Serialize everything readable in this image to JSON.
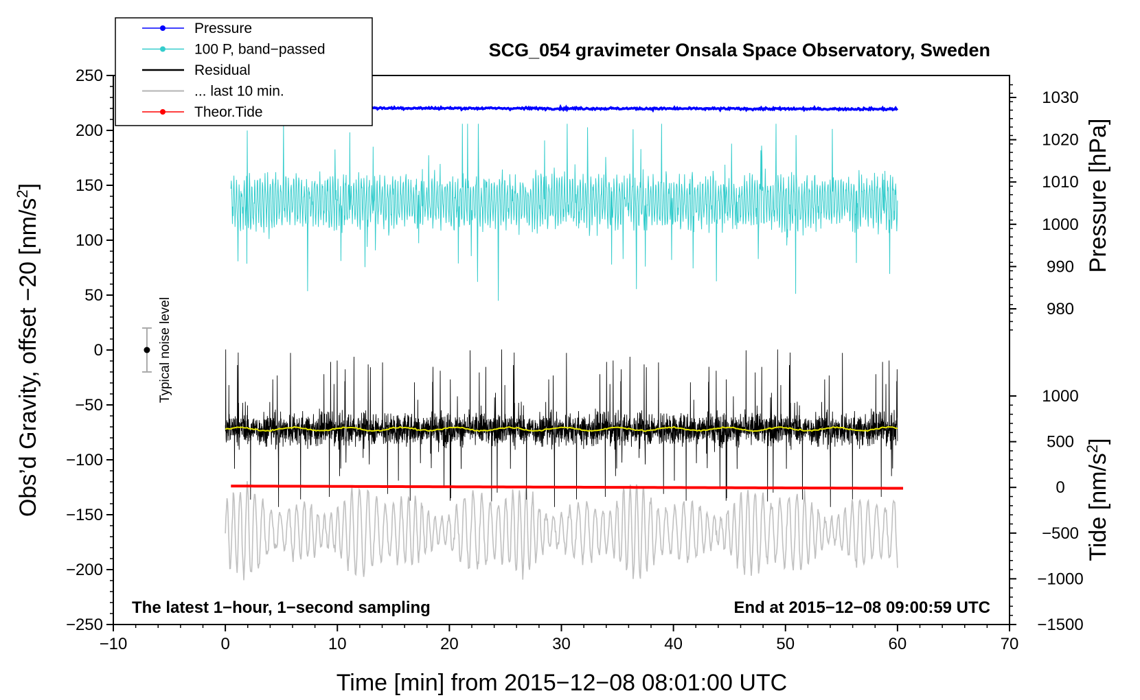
{
  "chart_data": {
    "type": "line",
    "title": "SCG_054 gravimeter Onsala Space Observatory, Sweden",
    "xlabel": "Time [min] from 2015−12−08 08:01:00 UTC",
    "ylabel_left_main": "Obs’d Gravity, offset −20 [nm/s",
    "ylabel_left_sup": "2",
    "ylabel_left_close": "]",
    "ylabel_right_pressure": "Pressure [hPa]",
    "ylabel_right_tide_main": "Tide [nm/s",
    "ylabel_right_tide_sup": "2",
    "ylabel_right_tide_close": "]",
    "xlim": [
      -10,
      70
    ],
    "ylim_left": [
      -250,
      250
    ],
    "pressure_axis_range": [
      975,
      1034
    ],
    "tide_axis_range": [
      -1500,
      1000
    ],
    "x_ticks": [
      "−10",
      "0",
      "10",
      "20",
      "30",
      "40",
      "50",
      "60",
      "70"
    ],
    "x_tick_values": [
      -10,
      0,
      10,
      20,
      30,
      40,
      50,
      60,
      70
    ],
    "y_left_ticks": [
      "250",
      "200",
      "150",
      "100",
      "50",
      "0",
      "−50",
      "−100",
      "−150",
      "−200",
      "−250"
    ],
    "y_left_tick_values": [
      250,
      200,
      150,
      100,
      50,
      0,
      -50,
      -100,
      -150,
      -200,
      -250
    ],
    "pressure_ticks": [
      "1030",
      "1020",
      "1010",
      "1000",
      "990",
      "980"
    ],
    "pressure_tick_values": [
      1030,
      1020,
      1010,
      1000,
      990,
      980
    ],
    "tide_ticks": [
      "1000",
      "500",
      "0",
      "−500",
      "−1000",
      "−1500"
    ],
    "tide_tick_values": [
      1000,
      500,
      0,
      -500,
      -1000,
      -1500
    ],
    "legend": [
      {
        "label": "Pressure",
        "color": "#0000ff",
        "style": "line-dot"
      },
      {
        "label": "100 P, band−passed",
        "color": "#33cccc",
        "style": "line-dot"
      },
      {
        "label": "Residual",
        "color": "#000000",
        "style": "line"
      },
      {
        "label": "... last 10 min.",
        "color": "#c0c0c0",
        "style": "line"
      },
      {
        "label": "Theor.Tide",
        "color": "#ff0000",
        "style": "line-dot"
      }
    ],
    "annotations": {
      "bottom_left": "The latest 1−hour, 1−second sampling",
      "bottom_right": "End at 2015−12−08 09:00:59 UTC",
      "noise_label": "Typical noise level"
    },
    "noise_bar": {
      "x": -7,
      "center": 0,
      "half_range": 20
    },
    "series": [
      {
        "name": "Pressure",
        "axis": "pressure",
        "color": "#0000ff",
        "x_range": [
          10,
          60
        ],
        "level_hpa": 1027.5,
        "noise": 0.25
      },
      {
        "name": "100 P, band−passed",
        "axis": "left",
        "color": "#33cccc",
        "x_range": [
          0.5,
          60
        ],
        "mean": 135,
        "amplitude": 30,
        "min": 41,
        "max": 206
      },
      {
        "name": "Residual",
        "axis": "left",
        "color": "#000000",
        "x_range": [
          0,
          60
        ],
        "mean": -72,
        "amplitude": 30,
        "min": -146,
        "max": 7
      },
      {
        "name": "Residual smoothed",
        "axis": "left",
        "color": "#e6e600",
        "x_range": [
          0,
          60
        ],
        "mean": -72,
        "amplitude": 1.5
      },
      {
        "name": "... last 10 min.",
        "axis": "left",
        "color": "#c0c0c0",
        "x_range": [
          0,
          60
        ],
        "mean": -165,
        "amplitude": 35,
        "min": -214,
        "max": -112
      },
      {
        "name": "Theor.Tide",
        "axis": "tide",
        "color": "#ff0000",
        "x_range": [
          0.5,
          60.5
        ],
        "start": 15,
        "end": -10
      }
    ]
  }
}
